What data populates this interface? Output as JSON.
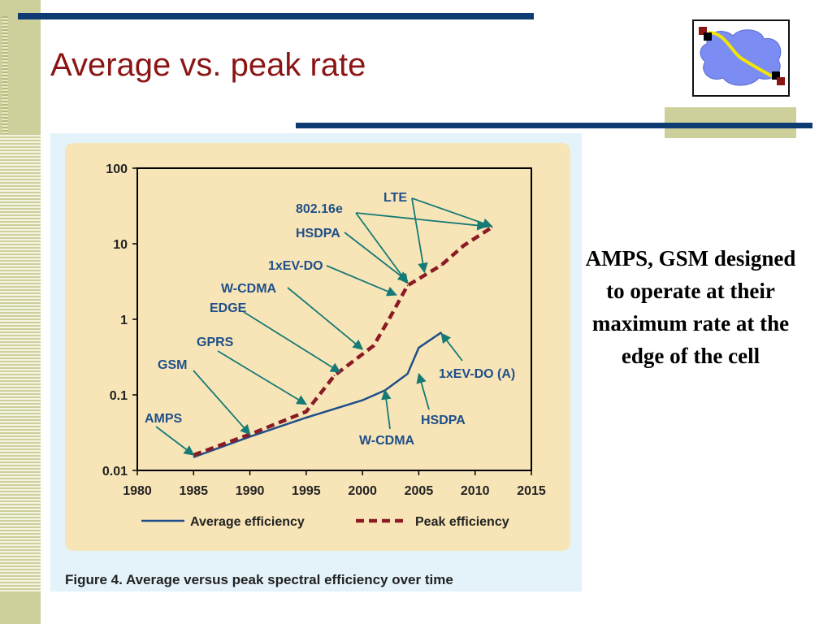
{
  "slide": {
    "title": "Average vs. peak rate",
    "note": "AMPS, GSM designed to operate at their maximum rate at the edge of the cell",
    "figure_caption": "Figure 4. Average versus peak spectral efficiency over time",
    "logo_icon": "network-cloud-icon"
  },
  "colors": {
    "title": "#8b1414",
    "rule": "#0f3b73",
    "stripe": "#cdd09a",
    "plot_bg": "#f8e5b7",
    "average_line": "#1f4f8a",
    "peak_line": "#8b1a24",
    "arrow": "#167a76",
    "label": "#1f4f8a"
  },
  "chart_data": {
    "type": "line",
    "title": "",
    "xlabel": "",
    "ylabel": "",
    "x_scale": "linear",
    "y_scale": "log",
    "xlim": [
      1980,
      2015
    ],
    "ylim": [
      0.01,
      100
    ],
    "x_ticks": [
      "1980",
      "1985",
      "1990",
      "1995",
      "2000",
      "2005",
      "2010",
      "2015"
    ],
    "y_ticks": [
      "100",
      "10",
      "1",
      "0.1",
      "0.01"
    ],
    "grid": false,
    "legend": "bottom",
    "series": [
      {
        "name": "Average efficiency",
        "style": "solid",
        "x": [
          1985,
          1990,
          1995,
          2000,
          2002,
          2004,
          2005,
          2007
        ],
        "y": [
          0.015,
          0.028,
          0.05,
          0.085,
          0.115,
          0.19,
          0.42,
          0.67
        ]
      },
      {
        "name": "Peak efficiency",
        "style": "dashed",
        "x": [
          1985,
          1990,
          1995,
          1997.5,
          2001,
          2002.5,
          2004,
          2007,
          2009,
          2011.5
        ],
        "y": [
          0.016,
          0.03,
          0.06,
          0.18,
          0.45,
          1.1,
          2.8,
          5.2,
          9.5,
          16.5
        ]
      }
    ],
    "annotations": {
      "peak": [
        {
          "label": "AMPS",
          "x": 1985,
          "y": 0.016
        },
        {
          "label": "GSM",
          "x": 1990,
          "y": 0.03
        },
        {
          "label": "GPRS",
          "x": 1995,
          "y": 0.075
        },
        {
          "label": "EDGE",
          "x": 1998,
          "y": 0.2
        },
        {
          "label": "W-CDMA",
          "x": 2000,
          "y": 0.4
        },
        {
          "label": "1xEV-DO",
          "x": 2003,
          "y": 2.1
        },
        {
          "label": "HSDPA",
          "x": 2004,
          "y": 3.2
        },
        {
          "label": "802.16e",
          "x": 2011,
          "y": 17
        },
        {
          "label": "LTE",
          "x": 2005.5,
          "y": 4.2
        }
      ],
      "average": [
        {
          "label": "W-CDMA",
          "x": 2002,
          "y": 0.115
        },
        {
          "label": "HSDPA",
          "x": 2005,
          "y": 0.19
        },
        {
          "label": "1xEV-DO (A)",
          "x": 2007,
          "y": 0.65
        }
      ]
    }
  }
}
